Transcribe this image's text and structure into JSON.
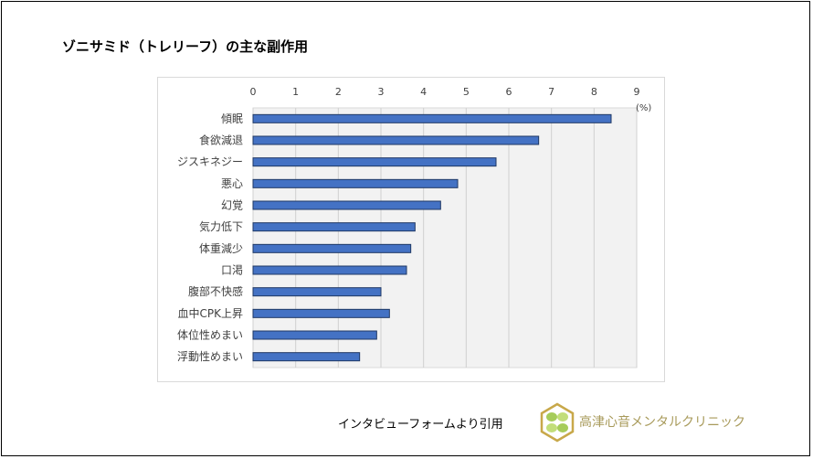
{
  "title": "ゾニサミド（トレリーフ）の主な副作用",
  "citation": "インタビューフォームより引用",
  "clinic_name": "高津心音メンタルクリニック",
  "chart_data": {
    "type": "bar",
    "orientation": "horizontal",
    "title": "",
    "unit_label": "(%)",
    "categories": [
      "傾眠",
      "食欲減退",
      "ジスキネジー",
      "悪心",
      "幻覚",
      "気力低下",
      "体重減少",
      "口渇",
      "腹部不快感",
      "血中CPK上昇",
      "体位性めまい",
      "浮動性めまい"
    ],
    "values": [
      8.4,
      6.7,
      5.7,
      4.8,
      4.4,
      3.8,
      3.7,
      3.6,
      3.0,
      3.2,
      2.9,
      2.5
    ],
    "xlim": [
      0,
      9
    ],
    "xticks": [
      "0",
      "1",
      "2",
      "3",
      "4",
      "5",
      "6",
      "7",
      "8",
      "9"
    ],
    "axis_position": "top",
    "grid": true,
    "bar_color": "#4472c4",
    "bar_edge_color": "#1f3864",
    "plot_background": "#f2f2f2"
  }
}
